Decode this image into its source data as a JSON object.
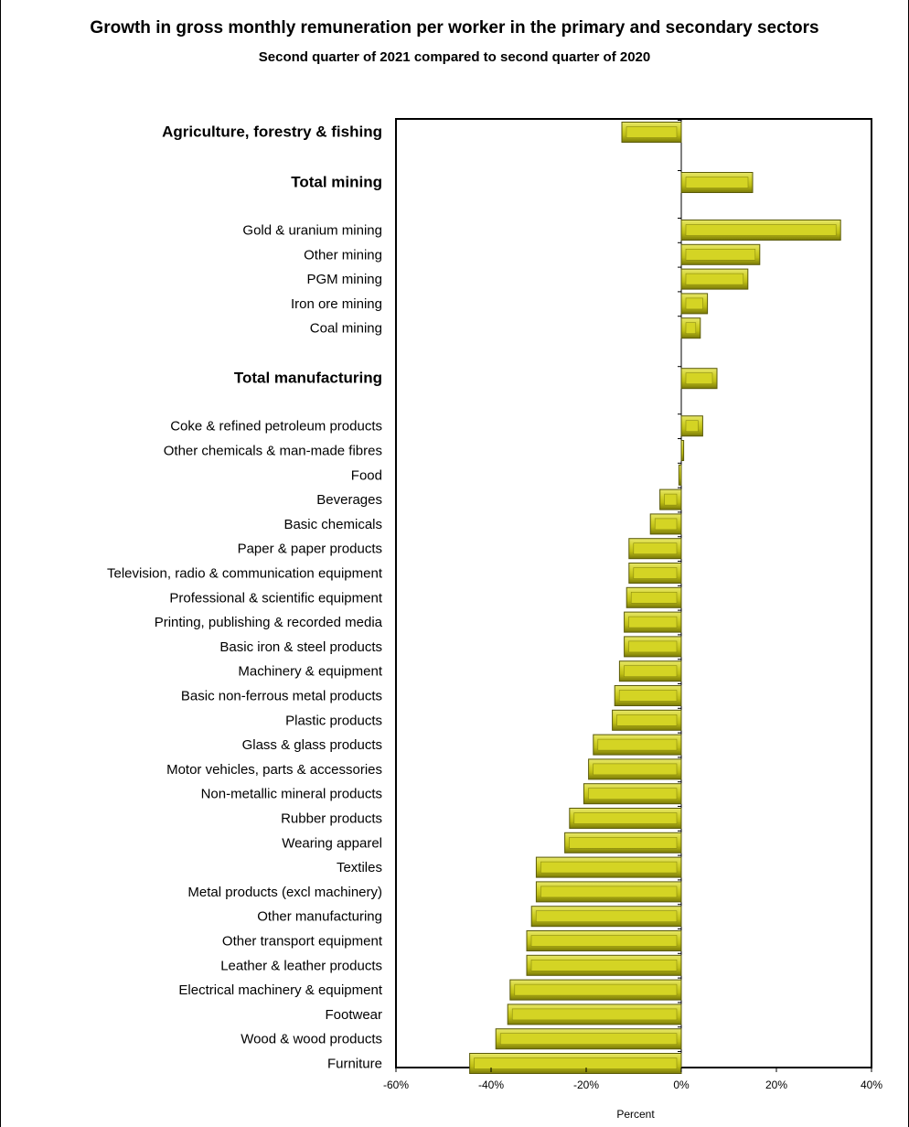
{
  "title": "Growth in gross monthly remuneration per worker in the primary and secondary sectors",
  "subtitle": "Second quarter of 2021 compared to second quarter of 2020",
  "chart_data": {
    "type": "bar",
    "orientation": "horizontal",
    "xlabel": "Percent",
    "ylabel": "",
    "xlim": [
      -60,
      40
    ],
    "xticks": [
      -60,
      -40,
      -20,
      0,
      20,
      40
    ],
    "xtick_labels": [
      "-60%",
      "-40%",
      "-20%",
      "0%",
      "20%",
      "40%"
    ],
    "grid": false,
    "legend": "none",
    "bar_color": "#c8c81e",
    "categories": [
      {
        "label": "Agriculture, forestry & fishing",
        "value": -12.5,
        "bold": true
      },
      {
        "label": "Total mining",
        "value": 15.0,
        "bold": true
      },
      {
        "label": "Gold & uranium mining",
        "value": 33.5,
        "bold": false
      },
      {
        "label": "Other mining",
        "value": 16.5,
        "bold": false
      },
      {
        "label": "PGM mining",
        "value": 14.0,
        "bold": false
      },
      {
        "label": "Iron ore mining",
        "value": 5.5,
        "bold": false
      },
      {
        "label": "Coal mining",
        "value": 4.0,
        "bold": false
      },
      {
        "label": "Total manufacturing",
        "value": 7.5,
        "bold": true
      },
      {
        "label": "Coke & refined petroleum products",
        "value": 4.5,
        "bold": false
      },
      {
        "label": "Other chemicals & man-made fibres",
        "value": 0.5,
        "bold": false
      },
      {
        "label": "Food",
        "value": -0.5,
        "bold": false
      },
      {
        "label": "Beverages",
        "value": -4.5,
        "bold": false
      },
      {
        "label": "Basic chemicals",
        "value": -6.5,
        "bold": false
      },
      {
        "label": "Paper & paper products",
        "value": -11.0,
        "bold": false
      },
      {
        "label": "Television, radio & communication equipment",
        "value": -11.0,
        "bold": false
      },
      {
        "label": "Professional & scientific equipment",
        "value": -11.5,
        "bold": false
      },
      {
        "label": "Printing, publishing & recorded media",
        "value": -12.0,
        "bold": false
      },
      {
        "label": "Basic iron & steel products",
        "value": -12.0,
        "bold": false
      },
      {
        "label": "Machinery & equipment",
        "value": -13.0,
        "bold": false
      },
      {
        "label": "Basic non-ferrous metal products",
        "value": -14.0,
        "bold": false
      },
      {
        "label": "Plastic products",
        "value": -14.5,
        "bold": false
      },
      {
        "label": "Glass & glass products",
        "value": -18.5,
        "bold": false
      },
      {
        "label": "Motor vehicles, parts & accessories",
        "value": -19.5,
        "bold": false
      },
      {
        "label": "Non-metallic mineral products",
        "value": -20.5,
        "bold": false
      },
      {
        "label": "Rubber products",
        "value": -23.5,
        "bold": false
      },
      {
        "label": "Wearing apparel",
        "value": -24.5,
        "bold": false
      },
      {
        "label": "Textiles",
        "value": -30.5,
        "bold": false
      },
      {
        "label": "Metal products (excl machinery)",
        "value": -30.5,
        "bold": false
      },
      {
        "label": "Other manufacturing",
        "value": -31.5,
        "bold": false
      },
      {
        "label": "Other transport equipment",
        "value": -32.5,
        "bold": false
      },
      {
        "label": "Leather & leather products",
        "value": -32.5,
        "bold": false
      },
      {
        "label": "Electrical machinery & equipment",
        "value": -36.0,
        "bold": false
      },
      {
        "label": "Footwear",
        "value": -36.5,
        "bold": false
      },
      {
        "label": "Wood & wood products",
        "value": -39.0,
        "bold": false
      },
      {
        "label": "Furniture",
        "value": -44.5,
        "bold": false
      }
    ]
  }
}
